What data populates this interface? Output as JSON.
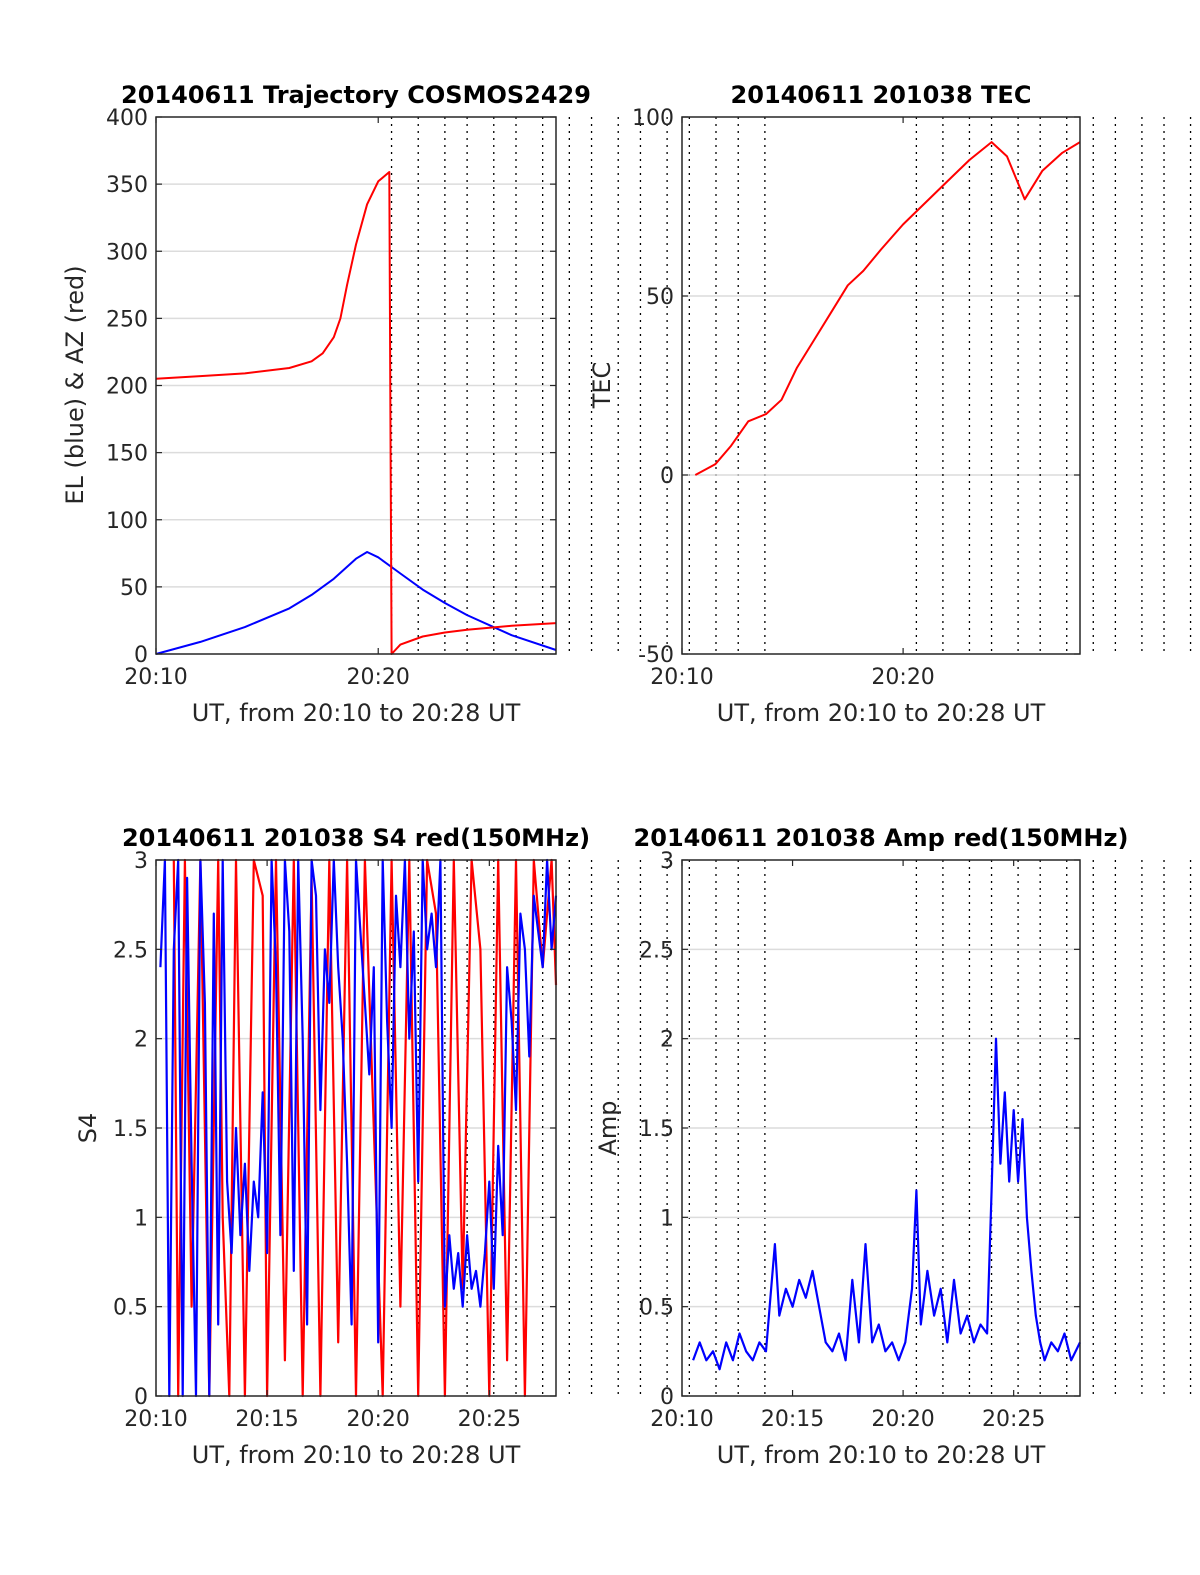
{
  "figure": {
    "colors": {
      "el": "#0000ff",
      "az": "#ff0000",
      "tec": "#ff0000",
      "grid": "#dcdcdc",
      "vline": "#000000",
      "axis": "#262626"
    },
    "vertical_markers_minutes": [
      10.6,
      11.8,
      13.0,
      14.0,
      15.2,
      16.2,
      17.4,
      18.6,
      19.6,
      20.8,
      21.8,
      23.0,
      24.0,
      25.2,
      26.2,
      27.4
    ]
  },
  "chart_data": [
    {
      "id": "traj",
      "type": "line",
      "title": "20140611 Trajectory COSMOS2429",
      "xlabel": "UT, from 20:10 to 20:28 UT",
      "ylabel": "EL (blue) & AZ (red)",
      "xlim": [
        0,
        18
      ],
      "ylim": [
        0,
        400
      ],
      "xticks": [
        0,
        10
      ],
      "xtick_labels": [
        "20:10",
        "20:20"
      ],
      "yticks": [
        0,
        50,
        100,
        150,
        200,
        250,
        300,
        350,
        400
      ],
      "ytick_labels": [
        "0",
        "50",
        "100",
        "150",
        "200",
        "250",
        "300",
        "350",
        "400"
      ],
      "grid": "horizontal",
      "series": [
        {
          "key": "el",
          "color": "#0000ff",
          "x": [
            0,
            2,
            4,
            6,
            7,
            8,
            9,
            9.5,
            10,
            11,
            12,
            13,
            14,
            16,
            18
          ],
          "y": [
            0,
            9,
            20,
            34,
            44,
            56,
            71,
            76,
            72,
            60,
            48,
            38,
            29,
            14,
            3
          ]
        },
        {
          "key": "az",
          "color": "#ff0000",
          "x": [
            0,
            2,
            4,
            6,
            7,
            7.5,
            8,
            8.3,
            8.6,
            9,
            9.5,
            10,
            10.5,
            10.55,
            10.6,
            11,
            12,
            13,
            14,
            16,
            18
          ],
          "y": [
            205,
            207,
            209,
            213,
            218,
            224,
            236,
            250,
            275,
            305,
            335,
            352,
            359,
            180,
            0,
            7,
            13,
            16,
            18,
            21,
            23
          ]
        }
      ]
    },
    {
      "id": "tec",
      "type": "line",
      "title": "20140611 201038 TEC",
      "xlabel": "UT, from 20:10 to 20:28 UT",
      "ylabel": "TEC",
      "xlim": [
        0,
        18
      ],
      "ylim": [
        -50,
        100
      ],
      "xticks": [
        0,
        10
      ],
      "xtick_labels": [
        "20:10",
        "20:20"
      ],
      "yticks": [
        -50,
        0,
        50,
        100
      ],
      "ytick_labels": [
        "-50",
        "0",
        "50",
        "100"
      ],
      "grid": "horizontal",
      "series": [
        {
          "key": "tec",
          "color": "#ff0000",
          "x": [
            0.6,
            1.5,
            2.2,
            3.0,
            3.8,
            4.5,
            5.2,
            6.0,
            6.8,
            7.5,
            8.2,
            9.0,
            10.0,
            11.0,
            12.0,
            13.0,
            14.0,
            14.7,
            15.5,
            16.3,
            17.2,
            18.0
          ],
          "y": [
            0,
            3,
            8,
            15,
            17,
            21,
            30,
            38,
            46,
            53,
            57,
            63,
            70,
            76,
            82,
            88,
            93,
            89,
            77,
            85,
            90,
            93
          ]
        }
      ]
    },
    {
      "id": "s4",
      "type": "line",
      "title": "20140611 201038 S4 red(150MHz)",
      "xlabel": "UT, from 20:10 to 20:28 UT",
      "ylabel": "S4",
      "xlim": [
        0,
        18
      ],
      "ylim": [
        0,
        3
      ],
      "xticks": [
        0,
        5,
        10,
        15
      ],
      "xtick_labels": [
        "20:10",
        "20:15",
        "20:20",
        "20:25"
      ],
      "yticks": [
        0,
        0.5,
        1,
        1.5,
        2,
        2.5,
        3
      ],
      "ytick_labels": [
        "0",
        "0.5",
        "1",
        "1.5",
        "2",
        "2.5",
        "3"
      ],
      "grid": "horizontal",
      "series": [
        {
          "key": "red",
          "color": "#ff0000",
          "x": [
            0.8,
            1.0,
            1.3,
            1.6,
            2.0,
            2.4,
            2.8,
            3.0,
            3.3,
            3.6,
            4.0,
            4.4,
            4.8,
            5.0,
            5.4,
            5.8,
            6.2,
            6.6,
            7.0,
            7.4,
            7.8,
            8.2,
            8.6,
            9.0,
            9.4,
            9.8,
            10.2,
            10.6,
            11.0,
            11.4,
            11.8,
            12.2,
            12.6,
            13.0,
            13.4,
            13.8,
            14.2,
            14.6,
            15.0,
            15.4,
            15.8,
            16.2,
            16.6,
            17.0,
            17.4,
            17.8,
            18.0
          ],
          "y": [
            3,
            0,
            3,
            0.5,
            3,
            0,
            3,
            1,
            0,
            3,
            0,
            3,
            2.8,
            0,
            3,
            0.2,
            3,
            0,
            2.9,
            0,
            3,
            0.3,
            3,
            0,
            3,
            1.5,
            0,
            3,
            0.5,
            3,
            0,
            3,
            2.7,
            0,
            3,
            0.6,
            3,
            2.5,
            0,
            3,
            0.2,
            3,
            0,
            3,
            2.4,
            3,
            2.3
          ]
        },
        {
          "key": "blue",
          "color": "#0000ff",
          "x": [
            0.2,
            0.4,
            0.6,
            0.8,
            1.0,
            1.2,
            1.4,
            1.6,
            1.8,
            2.0,
            2.2,
            2.4,
            2.6,
            2.8,
            3.0,
            3.2,
            3.4,
            3.6,
            3.8,
            4.0,
            4.2,
            4.4,
            4.6,
            4.8,
            5.0,
            5.2,
            5.4,
            5.6,
            5.8,
            6.0,
            6.2,
            6.4,
            6.6,
            6.8,
            7.0,
            7.2,
            7.4,
            7.6,
            7.8,
            8.0,
            8.2,
            8.4,
            8.6,
            8.8,
            9.0,
            9.2,
            9.4,
            9.6,
            9.8,
            10.0,
            10.2,
            10.4,
            10.6,
            10.8,
            11.0,
            11.2,
            11.4,
            11.6,
            11.8,
            12.0,
            12.2,
            12.4,
            12.6,
            12.8,
            13.0,
            13.2,
            13.4,
            13.6,
            13.8,
            14.0,
            14.2,
            14.4,
            14.6,
            14.8,
            15.0,
            15.2,
            15.4,
            15.6,
            15.8,
            16.0,
            16.2,
            16.4,
            16.6,
            16.8,
            17.0,
            17.2,
            17.4,
            17.6,
            17.8,
            18.0
          ],
          "y": [
            2.4,
            3,
            0,
            2.5,
            3,
            0,
            2.9,
            1.3,
            0,
            3,
            2.2,
            0,
            2.7,
            0.4,
            3,
            1.2,
            0.8,
            1.5,
            0.9,
            1.3,
            0.7,
            1.2,
            1.0,
            1.7,
            0.8,
            3,
            2.4,
            0.9,
            3,
            2.6,
            0.7,
            3,
            2.0,
            0.4,
            3,
            2.8,
            1.6,
            2.5,
            2.2,
            3,
            2.4,
            2.0,
            1.3,
            0.4,
            3,
            2.6,
            2.2,
            1.8,
            2.4,
            0.3,
            3,
            2.1,
            1.5,
            2.8,
            2.4,
            3,
            2.0,
            2.6,
            1.2,
            3,
            2.5,
            2.7,
            2.4,
            3,
            0.5,
            0.9,
            0.6,
            0.8,
            0.5,
            0.9,
            0.6,
            0.7,
            0.5,
            0.8,
            1.2,
            0.6,
            1.4,
            0.9,
            2.4,
            2.1,
            1.6,
            2.7,
            2.5,
            1.9,
            2.8,
            2.6,
            2.4,
            3,
            2.5,
            2.8
          ]
        }
      ]
    },
    {
      "id": "amp",
      "type": "line",
      "title": "20140611 201038 Amp red(150MHz)",
      "xlabel": "UT, from 20:10 to 20:28 UT",
      "ylabel": "Amp",
      "xlim": [
        0,
        18
      ],
      "ylim": [
        0,
        3
      ],
      "xticks": [
        0,
        5,
        10,
        15
      ],
      "xtick_labels": [
        "20:10",
        "20:15",
        "20:20",
        "20:25"
      ],
      "yticks": [
        0,
        0.5,
        1,
        1.5,
        2,
        2.5,
        3
      ],
      "ytick_labels": [
        "0",
        "0.5",
        "1",
        "1.5",
        "2",
        "2.5",
        "3"
      ],
      "grid": "horizontal",
      "series": [
        {
          "key": "amp",
          "color": "#0000ff",
          "x": [
            0.5,
            0.8,
            1.1,
            1.4,
            1.7,
            2.0,
            2.3,
            2.6,
            2.9,
            3.2,
            3.5,
            3.8,
            4.0,
            4.2,
            4.4,
            4.7,
            5.0,
            5.3,
            5.6,
            5.9,
            6.2,
            6.5,
            6.8,
            7.1,
            7.4,
            7.7,
            8.0,
            8.3,
            8.6,
            8.9,
            9.2,
            9.5,
            9.8,
            10.1,
            10.4,
            10.6,
            10.8,
            11.1,
            11.4,
            11.7,
            12.0,
            12.3,
            12.6,
            12.9,
            13.2,
            13.5,
            13.8,
            14.0,
            14.2,
            14.4,
            14.6,
            14.8,
            15.0,
            15.2,
            15.4,
            15.6,
            15.8,
            16.0,
            16.2,
            16.4,
            16.7,
            17.0,
            17.3,
            17.6,
            18.0
          ],
          "y": [
            0.2,
            0.3,
            0.2,
            0.25,
            0.15,
            0.3,
            0.2,
            0.35,
            0.25,
            0.2,
            0.3,
            0.25,
            0.55,
            0.85,
            0.45,
            0.6,
            0.5,
            0.65,
            0.55,
            0.7,
            0.5,
            0.3,
            0.25,
            0.35,
            0.2,
            0.65,
            0.3,
            0.85,
            0.3,
            0.4,
            0.25,
            0.3,
            0.2,
            0.3,
            0.6,
            1.15,
            0.4,
            0.7,
            0.45,
            0.6,
            0.3,
            0.65,
            0.35,
            0.45,
            0.3,
            0.4,
            0.35,
            1.15,
            2.0,
            1.3,
            1.7,
            1.2,
            1.6,
            1.2,
            1.55,
            1.0,
            0.7,
            0.45,
            0.3,
            0.2,
            0.3,
            0.25,
            0.35,
            0.2,
            0.3
          ]
        }
      ]
    }
  ]
}
